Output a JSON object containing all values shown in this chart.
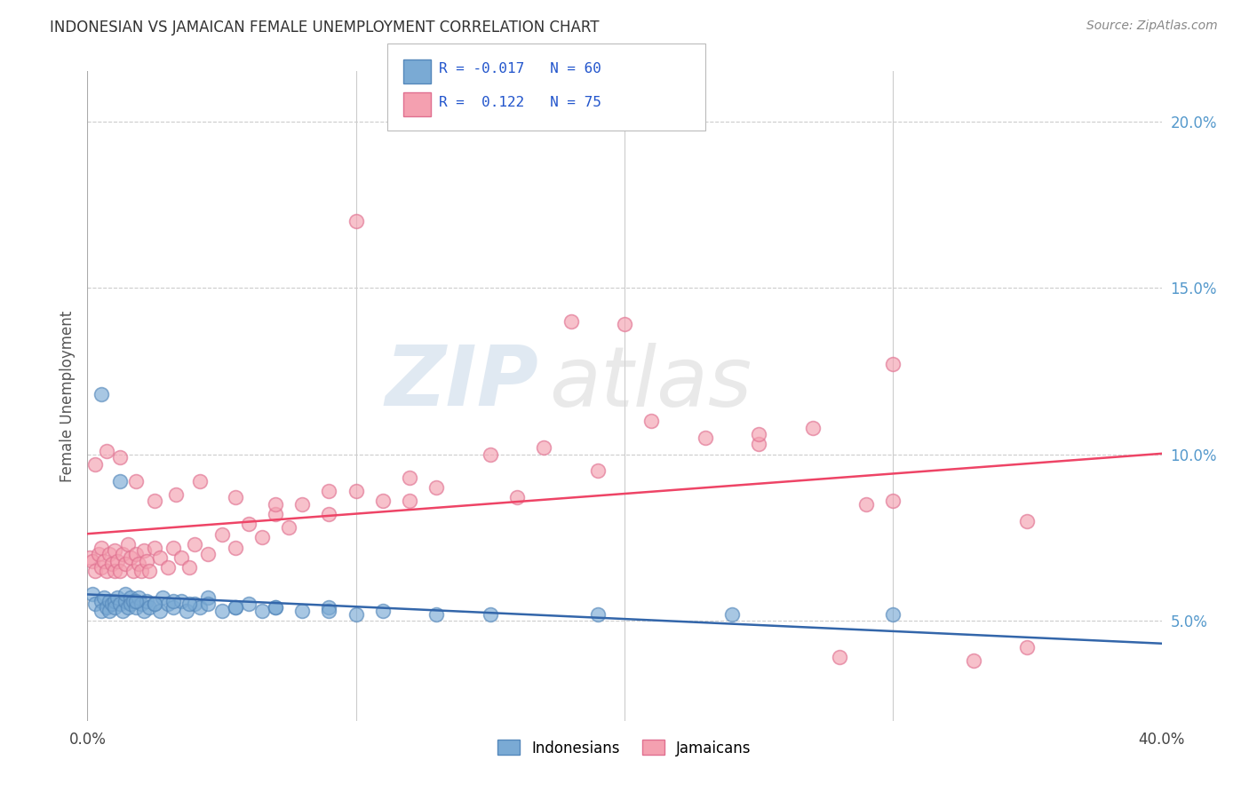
{
  "title": "INDONESIAN VS JAMAICAN FEMALE UNEMPLOYMENT CORRELATION CHART",
  "source_text": "Source: ZipAtlas.com",
  "ylabel": "Female Unemployment",
  "xlim": [
    0.0,
    0.4
  ],
  "ylim": [
    0.02,
    0.215
  ],
  "x_ticks": [
    0.0,
    0.1,
    0.2,
    0.3,
    0.4
  ],
  "x_tick_labels": [
    "0.0%",
    "",
    "",
    "",
    "40.0%"
  ],
  "y_ticks_right": [
    0.05,
    0.1,
    0.15,
    0.2
  ],
  "y_tick_labels_right": [
    "5.0%",
    "10.0%",
    "15.0%",
    "20.0%"
  ],
  "indonesian_color": "#7aaad4",
  "jamaican_color": "#f4a0b0",
  "indonesian_edge_color": "#5588bb",
  "jamaican_edge_color": "#e07090",
  "indonesian_line_color": "#3366aa",
  "jamaican_line_color": "#ee4466",
  "legend_text_color": "#2255cc",
  "watermark": "ZIPatlas",
  "background_color": "#ffffff",
  "grid_color": "#cccccc",
  "right_axis_color": "#5599cc",
  "indonesian_R": -0.017,
  "indonesian_N": 60,
  "jamaican_R": 0.122,
  "jamaican_N": 75,
  "indo_x": [
    0.002,
    0.003,
    0.005,
    0.005,
    0.006,
    0.007,
    0.008,
    0.008,
    0.009,
    0.01,
    0.01,
    0.011,
    0.012,
    0.013,
    0.014,
    0.014,
    0.015,
    0.016,
    0.016,
    0.017,
    0.018,
    0.019,
    0.02,
    0.021,
    0.022,
    0.023,
    0.025,
    0.027,
    0.028,
    0.03,
    0.032,
    0.035,
    0.037,
    0.04,
    0.042,
    0.045,
    0.05,
    0.055,
    0.06,
    0.065,
    0.07,
    0.08,
    0.09,
    0.1,
    0.11,
    0.13,
    0.15,
    0.19,
    0.24,
    0.3,
    0.005,
    0.012,
    0.018,
    0.025,
    0.032,
    0.038,
    0.045,
    0.055,
    0.07,
    0.09
  ],
  "indo_y": [
    0.058,
    0.055,
    0.056,
    0.053,
    0.057,
    0.054,
    0.056,
    0.053,
    0.055,
    0.056,
    0.054,
    0.057,
    0.055,
    0.053,
    0.056,
    0.058,
    0.054,
    0.057,
    0.055,
    0.056,
    0.054,
    0.057,
    0.055,
    0.053,
    0.056,
    0.054,
    0.055,
    0.053,
    0.057,
    0.055,
    0.054,
    0.056,
    0.053,
    0.055,
    0.054,
    0.057,
    0.053,
    0.054,
    0.055,
    0.053,
    0.054,
    0.053,
    0.054,
    0.052,
    0.053,
    0.052,
    0.052,
    0.052,
    0.052,
    0.052,
    0.118,
    0.092,
    0.056,
    0.055,
    0.056,
    0.055,
    0.055,
    0.054,
    0.054,
    0.053
  ],
  "jam_x": [
    0.001,
    0.002,
    0.003,
    0.004,
    0.005,
    0.005,
    0.006,
    0.007,
    0.008,
    0.009,
    0.01,
    0.01,
    0.011,
    0.012,
    0.013,
    0.014,
    0.015,
    0.016,
    0.017,
    0.018,
    0.019,
    0.02,
    0.021,
    0.022,
    0.023,
    0.025,
    0.027,
    0.03,
    0.032,
    0.035,
    0.038,
    0.04,
    0.045,
    0.05,
    0.055,
    0.06,
    0.065,
    0.07,
    0.075,
    0.08,
    0.09,
    0.1,
    0.11,
    0.12,
    0.13,
    0.15,
    0.17,
    0.19,
    0.21,
    0.23,
    0.25,
    0.27,
    0.29,
    0.3,
    0.35,
    0.003,
    0.007,
    0.012,
    0.018,
    0.025,
    0.033,
    0.042,
    0.055,
    0.07,
    0.09,
    0.12,
    0.16,
    0.2,
    0.25,
    0.3,
    0.35,
    0.28,
    0.33,
    0.18,
    0.1
  ],
  "jam_y": [
    0.069,
    0.068,
    0.065,
    0.07,
    0.066,
    0.072,
    0.068,
    0.065,
    0.07,
    0.067,
    0.065,
    0.071,
    0.068,
    0.065,
    0.07,
    0.067,
    0.073,
    0.069,
    0.065,
    0.07,
    0.067,
    0.065,
    0.071,
    0.068,
    0.065,
    0.072,
    0.069,
    0.066,
    0.072,
    0.069,
    0.066,
    0.073,
    0.07,
    0.076,
    0.072,
    0.079,
    0.075,
    0.082,
    0.078,
    0.085,
    0.082,
    0.089,
    0.086,
    0.093,
    0.09,
    0.1,
    0.102,
    0.095,
    0.11,
    0.105,
    0.103,
    0.108,
    0.085,
    0.086,
    0.042,
    0.097,
    0.101,
    0.099,
    0.092,
    0.086,
    0.088,
    0.092,
    0.087,
    0.085,
    0.089,
    0.086,
    0.087,
    0.139,
    0.106,
    0.127,
    0.08,
    0.039,
    0.038,
    0.14,
    0.17
  ]
}
